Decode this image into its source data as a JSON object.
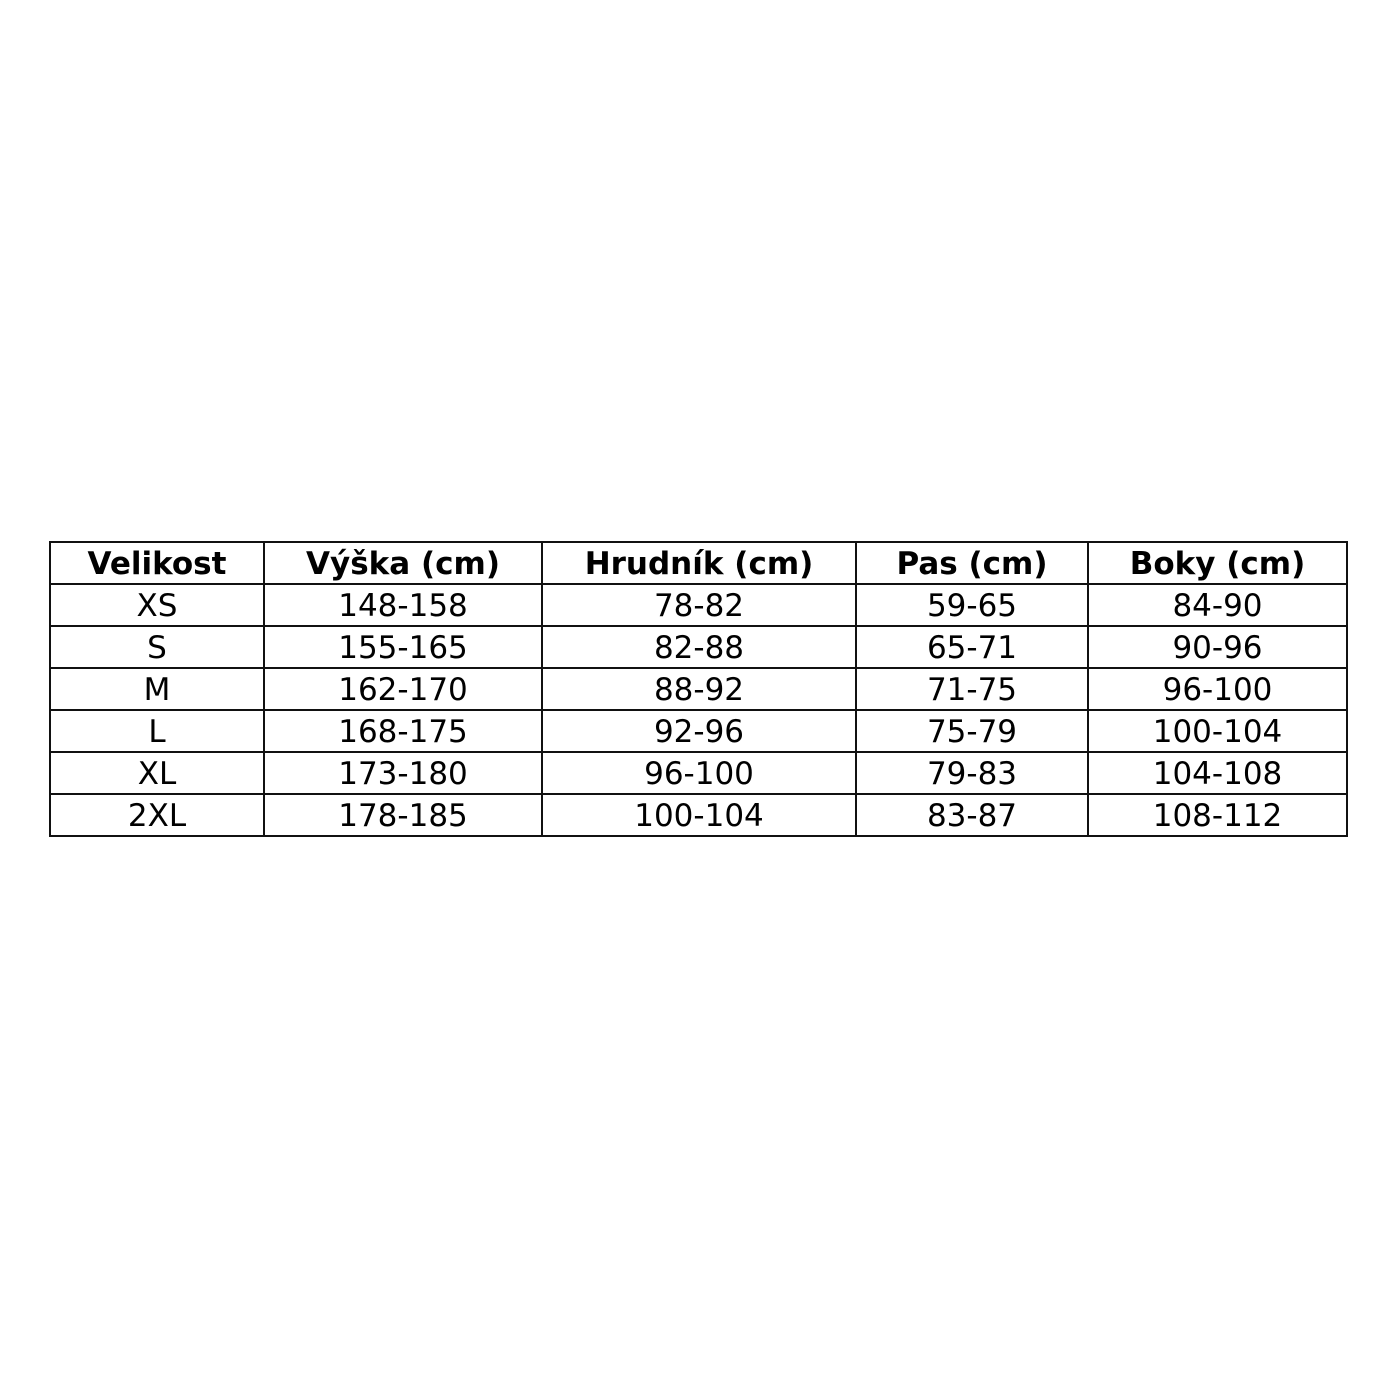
{
  "table": {
    "headers": [
      "Velikost",
      "Výška (cm)",
      "Hrudník (cm)",
      "Pas (cm)",
      "Boky (cm)"
    ],
    "rows": [
      [
        "XS",
        "148-158",
        "78-82",
        "59-65",
        "84-90"
      ],
      [
        "S",
        "155-165",
        "82-88",
        "65-71",
        "90-96"
      ],
      [
        "M",
        "162-170",
        "88-92",
        "71-75",
        "96-100"
      ],
      [
        "L",
        "168-175",
        "92-96",
        "75-79",
        "100-104"
      ],
      [
        "XL",
        "173-180",
        "96-100",
        "79-83",
        "104-108"
      ],
      [
        "2XL",
        "178-185",
        "100-104",
        "83-87",
        "108-112"
      ]
    ]
  }
}
